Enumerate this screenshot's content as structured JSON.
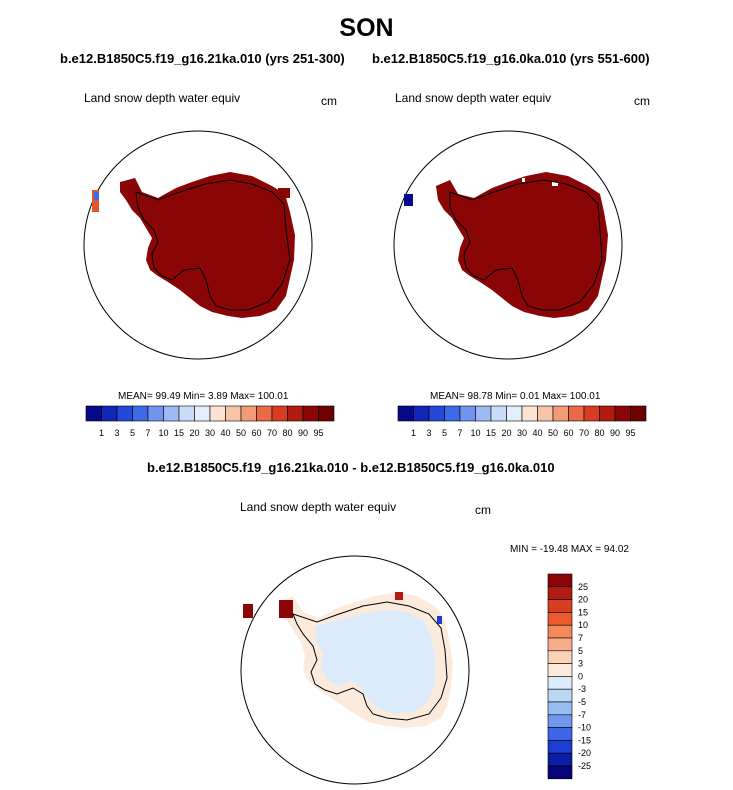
{
  "title": "SON",
  "panels": [
    {
      "case_title": "b.e12.B1850C5.f19_g16.21ka.010 (yrs 251-300)",
      "variable": "Land snow depth water equiv",
      "unit": "cm",
      "stats": {
        "mean": "99.49",
        "min": "3.89",
        "max": "100.01",
        "text": "MEAN=  99.49  Min=   3.89  Max= 100.01"
      }
    },
    {
      "case_title": "b.e12.B1850C5.f19_g16.0ka.010 (yrs 551-600)",
      "variable": "Land snow depth water equiv",
      "unit": "cm",
      "stats": {
        "mean": "98.78",
        "min": "0.01",
        "max": "100.01",
        "text": "MEAN=  98.78  Min=   0.01  Max= 100.01"
      }
    }
  ],
  "difference": {
    "title": "b.e12.B1850C5.f19_g16.21ka.010 - b.e12.B1850C5.f19_g16.0ka.010",
    "variable": "Land snow depth water equiv",
    "unit": "cm",
    "stats_text": "MIN = -19.48  MAX =  94.02",
    "min": -19.48,
    "max": 94.02
  },
  "chart_data": [
    {
      "type": "heatmap",
      "projection": "south polar stereographic",
      "title": "Land snow depth water equiv",
      "units": "cm",
      "colorbar": {
        "orientation": "horizontal",
        "levels": [
          "1",
          "3",
          "5",
          "7",
          "10",
          "15",
          "20",
          "30",
          "40",
          "50",
          "60",
          "70",
          "80",
          "90",
          "95"
        ],
        "colors": [
          "#08088a",
          "#1226b8",
          "#2448d8",
          "#3e6ae8",
          "#6f95f0",
          "#9ebaf4",
          "#c8dbf8",
          "#e4eefb",
          "#fbe2d2",
          "#f6c4a6",
          "#f19c76",
          "#ea6a48",
          "#d83c22",
          "#b01c10",
          "#8a0606",
          "#6e0000"
        ]
      },
      "mean": 99.49,
      "min": 3.89,
      "max": 100.01
    },
    {
      "type": "heatmap",
      "projection": "south polar stereographic",
      "title": "Land snow depth water equiv",
      "units": "cm",
      "colorbar": {
        "orientation": "horizontal",
        "levels": [
          "1",
          "3",
          "5",
          "7",
          "10",
          "15",
          "20",
          "30",
          "40",
          "50",
          "60",
          "70",
          "80",
          "90",
          "95"
        ],
        "colors": [
          "#08088a",
          "#1226b8",
          "#2448d8",
          "#3e6ae8",
          "#6f95f0",
          "#9ebaf4",
          "#c8dbf8",
          "#e4eefb",
          "#fbe2d2",
          "#f6c4a6",
          "#f19c76",
          "#ea6a48",
          "#d83c22",
          "#b01c10",
          "#8a0606",
          "#6e0000"
        ]
      },
      "mean": 98.78,
      "min": 0.01,
      "max": 100.01
    },
    {
      "type": "heatmap",
      "projection": "south polar stereographic",
      "title": "Land snow depth water equiv",
      "units": "cm",
      "colorbar": {
        "orientation": "vertical",
        "levels": [
          "25",
          "20",
          "15",
          "10",
          "7",
          "5",
          "3",
          "0",
          "-3",
          "-5",
          "-7",
          "-10",
          "-15",
          "-20",
          "-25"
        ],
        "colors": [
          "#8a0606",
          "#b01c10",
          "#d83c22",
          "#ee5a30",
          "#f48a5c",
          "#f7ae88",
          "#fad2b8",
          "#fcebdc",
          "#dcebfb",
          "#bcd6f6",
          "#97bdf2",
          "#6f97ee",
          "#3c66e6",
          "#1a3ed0",
          "#0c1ca8",
          "#06067a"
        ]
      },
      "min": -19.48,
      "max": 94.02
    }
  ]
}
